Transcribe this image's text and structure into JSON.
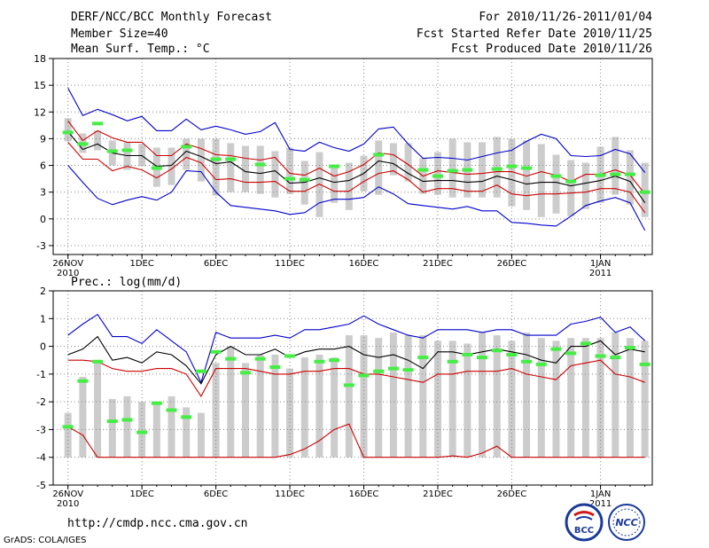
{
  "header": {
    "title": "DERF/NCC/BCC Monthly Forecast",
    "member_size": "Member Size=40",
    "variable": "Mean Surf. Temp.: °C",
    "period": "For 2010/11/26-2011/01/04",
    "started": "Fcst Started Refer Date 2010/11/25",
    "produced": "Fcst Produced Date 2010/11/26"
  },
  "precip_label": "Prec.: log(mm/d)",
  "footer": {
    "url": "http://cmdp.ncc.cma.gov.cn",
    "credit": "GrADS: COLA/IGES",
    "logo1": "BCC",
    "logo2": "NCC"
  },
  "colors": {
    "max": "#0000cc",
    "spread": "#cc0000",
    "mean": "#000000",
    "member": "#cccccc",
    "obs": "#44ee44",
    "grid": "#888888"
  },
  "chart_data": [
    {
      "type": "line",
      "title": "Mean Surf. Temp.: °C",
      "x_ticks": [
        {
          "day": 0,
          "label": "26NOV",
          "label2": "2010"
        },
        {
          "day": 5,
          "label": "1DEC"
        },
        {
          "day": 10,
          "label": "6DEC"
        },
        {
          "day": 15,
          "label": "11DEC"
        },
        {
          "day": 20,
          "label": "16DEC"
        },
        {
          "day": 25,
          "label": "21DEC"
        },
        {
          "day": 30,
          "label": "26DEC"
        },
        {
          "day": 36,
          "label": "1JAN",
          "label2": "2011"
        }
      ],
      "xlim": [
        -1,
        39.5
      ],
      "ylim": [
        -4,
        18
      ],
      "yticks": [
        -3,
        0,
        3,
        6,
        9,
        12,
        15,
        18
      ],
      "series": [
        {
          "name": "max",
          "values": [
            14.7,
            11.6,
            12.3,
            11.7,
            11.0,
            11.5,
            9.9,
            9.9,
            11.2,
            10.0,
            10.4,
            10.0,
            9.5,
            9.8,
            10.8,
            7.8,
            7.6,
            8.6,
            8.0,
            7.6,
            8.4,
            10.1,
            10.3,
            8.4,
            6.8,
            6.9,
            6.8,
            6.6,
            7.0,
            7.4,
            7.7,
            8.7,
            9.5,
            9.0,
            7.1,
            7.0,
            7.1,
            7.8,
            7.3,
            5.2
          ]
        },
        {
          "name": "spread_upper",
          "values": [
            11.0,
            8.8,
            9.9,
            9.1,
            8.6,
            8.6,
            7.1,
            7.1,
            8.4,
            7.9,
            7.2,
            7.1,
            6.8,
            6.6,
            6.9,
            5.1,
            4.9,
            5.7,
            4.8,
            5.3,
            6.1,
            7.4,
            7.2,
            6.1,
            4.8,
            5.4,
            5.2,
            5.0,
            5.1,
            5.3,
            5.3,
            4.8,
            5.3,
            4.9,
            4.2,
            5.0,
            5.0,
            5.5,
            4.9,
            2.8
          ]
        },
        {
          "name": "mean",
          "values": [
            9.8,
            7.8,
            8.4,
            7.4,
            7.1,
            7.1,
            5.9,
            6.0,
            7.6,
            7.0,
            6.2,
            6.4,
            5.3,
            5.1,
            5.4,
            4.0,
            4.1,
            4.6,
            4.1,
            4.3,
            5.1,
            6.5,
            6.2,
            5.1,
            4.2,
            4.3,
            4.3,
            4.1,
            4.2,
            4.8,
            4.4,
            3.9,
            4.1,
            4.1,
            3.7,
            4.0,
            4.3,
            4.8,
            4.2,
            1.8
          ]
        },
        {
          "name": "spread_lower",
          "values": [
            8.6,
            6.7,
            6.7,
            5.4,
            5.9,
            5.5,
            4.6,
            5.6,
            6.9,
            6.3,
            4.4,
            4.5,
            4.1,
            4.1,
            4.2,
            3.1,
            3.1,
            3.9,
            3.1,
            3.1,
            4.2,
            5.1,
            5.4,
            4.4,
            3.0,
            3.4,
            3.4,
            3.1,
            3.1,
            3.8,
            2.8,
            2.6,
            2.8,
            2.8,
            2.9,
            3.0,
            3.4,
            3.4,
            3.0,
            0.7
          ]
        },
        {
          "name": "min",
          "values": [
            6.0,
            4.1,
            2.3,
            1.6,
            2.1,
            2.5,
            2.1,
            3.0,
            5.4,
            5.3,
            3.0,
            1.5,
            1.3,
            1.1,
            0.9,
            0.5,
            0.7,
            1.8,
            2.2,
            2.2,
            2.4,
            3.6,
            2.8,
            1.7,
            1.5,
            1.3,
            1.1,
            1.4,
            0.9,
            0.9,
            -0.4,
            -0.5,
            -0.7,
            -0.8,
            0.3,
            1.5,
            2.0,
            2.4,
            1.8,
            -1.3
          ]
        }
      ],
      "members": [
        [
          8.7,
          11.3
        ],
        [
          7.4,
          9.6
        ],
        [
          7.7,
          9.9
        ],
        [
          6.0,
          8.8
        ],
        [
          5.5,
          8.6
        ],
        [
          5.9,
          8.4
        ],
        [
          3.6,
          8.0
        ],
        [
          3.8,
          8.0
        ],
        [
          5.5,
          9.0
        ],
        [
          4.2,
          9.0
        ],
        [
          2.6,
          9.0
        ],
        [
          3.0,
          8.5
        ],
        [
          3.0,
          8.2
        ],
        [
          2.8,
          8.2
        ],
        [
          2.4,
          7.6
        ],
        [
          2.8,
          8.0
        ],
        [
          1.6,
          6.5
        ],
        [
          0.2,
          7.5
        ],
        [
          1.8,
          6.1
        ],
        [
          1.0,
          6.3
        ],
        [
          3.1,
          7.1
        ],
        [
          2.7,
          8.8
        ],
        [
          4.9,
          8.5
        ],
        [
          4.2,
          8.5
        ],
        [
          2.8,
          6.8
        ],
        [
          2.7,
          7.5
        ],
        [
          2.4,
          9.0
        ],
        [
          2.4,
          8.6
        ],
        [
          2.4,
          8.6
        ],
        [
          2.4,
          9.2
        ],
        [
          1.4,
          9.0
        ],
        [
          1.0,
          8.8
        ],
        [
          0.2,
          8.4
        ],
        [
          0.6,
          7.2
        ],
        [
          0.3,
          6.6
        ],
        [
          1.1,
          6.3
        ],
        [
          1.8,
          8.1
        ],
        [
          2.7,
          9.2
        ],
        [
          1.6,
          7.7
        ],
        [
          0.2,
          6.3
        ]
      ],
      "obs": [
        {
          "day": 0,
          "v": 9.7
        },
        {
          "day": 1,
          "v": 8.4
        },
        {
          "day": 2,
          "v": 10.7
        },
        {
          "day": 3,
          "v": 7.6
        },
        {
          "day": 4,
          "v": 7.7
        },
        {
          "day": 6,
          "v": 5.7
        },
        {
          "day": 8,
          "v": 8.1
        },
        {
          "day": 10,
          "v": 6.7
        },
        {
          "day": 11,
          "v": 6.7
        },
        {
          "day": 13,
          "v": 6.1
        },
        {
          "day": 15,
          "v": 4.5
        },
        {
          "day": 16,
          "v": 4.4
        },
        {
          "day": 18,
          "v": 5.9
        },
        {
          "day": 21,
          "v": 7.2
        },
        {
          "day": 24,
          "v": 5.5
        },
        {
          "day": 25,
          "v": 4.8
        },
        {
          "day": 26,
          "v": 5.4
        },
        {
          "day": 27,
          "v": 5.5
        },
        {
          "day": 29,
          "v": 5.6
        },
        {
          "day": 30,
          "v": 5.9
        },
        {
          "day": 31,
          "v": 5.7
        },
        {
          "day": 33,
          "v": 4.8
        },
        {
          "day": 34,
          "v": 4.2
        },
        {
          "day": 36,
          "v": 4.9
        },
        {
          "day": 37,
          "v": 5.0
        },
        {
          "day": 38,
          "v": 5.0
        },
        {
          "day": 39,
          "v": 3.0
        }
      ]
    },
    {
      "type": "line",
      "title": "Prec.: log(mm/d)",
      "x_ticks": [
        {
          "day": 0,
          "label": "26NOV",
          "label2": "2010"
        },
        {
          "day": 5,
          "label": "1DEC"
        },
        {
          "day": 10,
          "label": "6DEC"
        },
        {
          "day": 15,
          "label": "11DEC"
        },
        {
          "day": 20,
          "label": "16DEC"
        },
        {
          "day": 25,
          "label": "21DEC"
        },
        {
          "day": 30,
          "label": "26DEC"
        },
        {
          "day": 36,
          "label": "1JAN",
          "label2": "2011"
        }
      ],
      "xlim": [
        -1,
        39.5
      ],
      "ylim": [
        -5,
        2
      ],
      "yticks": [
        -5,
        -4,
        -3,
        -2,
        -1,
        0,
        1,
        2
      ],
      "series": [
        {
          "name": "max",
          "values": [
            0.4,
            0.8,
            1.15,
            0.35,
            0.35,
            0.1,
            0.6,
            0.2,
            -0.2,
            -1.3,
            0.5,
            0.3,
            0.3,
            0.3,
            0.4,
            0.3,
            0.6,
            0.6,
            0.7,
            0.8,
            1.1,
            0.8,
            0.6,
            0.4,
            0.3,
            0.6,
            0.6,
            0.6,
            0.5,
            0.6,
            0.6,
            0.4,
            0.4,
            0.4,
            0.8,
            0.9,
            1.05,
            0.5,
            0.7,
            0.2
          ]
        },
        {
          "name": "mean",
          "values": [
            -0.3,
            -0.1,
            0.35,
            -0.5,
            -0.4,
            -0.6,
            -0.2,
            -0.3,
            -0.7,
            -1.35,
            -0.3,
            0.0,
            -0.3,
            -0.3,
            -0.1,
            -0.4,
            -0.2,
            -0.1,
            -0.1,
            0.0,
            -0.3,
            -0.4,
            -0.3,
            -0.5,
            -0.8,
            -0.2,
            -0.2,
            -0.3,
            -0.2,
            -0.1,
            -0.2,
            -0.3,
            -0.5,
            -0.6,
            0.0,
            0.0,
            0.2,
            -0.3,
            -0.1,
            -0.2
          ]
        },
        {
          "name": "spread_upper",
          "values": [
            -0.5,
            -0.5,
            -0.55,
            -0.8,
            -0.9,
            -0.9,
            -0.8,
            -0.8,
            -1.0,
            -1.8,
            -0.8,
            -0.8,
            -0.8,
            -0.9,
            -1.0,
            -1.0,
            -0.9,
            -0.9,
            -0.8,
            -0.8,
            -1.0,
            -1.0,
            -1.1,
            -1.2,
            -1.3,
            -1.0,
            -1.0,
            -0.9,
            -0.9,
            -0.9,
            -0.8,
            -1.0,
            -1.1,
            -1.2,
            -0.7,
            -0.6,
            -0.5,
            -1.0,
            -1.1,
            -1.3
          ]
        },
        {
          "name": "spread_lower",
          "values": [
            -2.9,
            -3.2,
            -4.0,
            -4.0,
            -4.0,
            -4.0,
            -4.0,
            -4.0,
            -4.0,
            -4.0,
            -4.0,
            -4.0,
            -4.0,
            -4.0,
            -4.0,
            -3.9,
            -3.7,
            -3.4,
            -3.0,
            -2.8,
            -4.0,
            -4.0,
            -4.0,
            -4.0,
            -4.0,
            -4.0,
            -3.95,
            -4.0,
            -3.85,
            -3.6,
            -4.0,
            -4.0,
            -4.0,
            -4.0,
            -4.0,
            -4.0,
            -4.0,
            -4.0,
            -4.0,
            -4.0
          ]
        }
      ],
      "members": [
        [
          -4.0,
          -2.4
        ],
        [
          -4.0,
          -1.1
        ],
        [
          -4.0,
          -0.6
        ],
        [
          -4.0,
          -1.9
        ],
        [
          -4.0,
          -1.8
        ],
        [
          -4.0,
          -2.0
        ],
        [
          -4.0,
          -2.0
        ],
        [
          -4.0,
          -1.8
        ],
        [
          -4.0,
          -2.2
        ],
        [
          -4.0,
          -2.4
        ],
        [
          -4.0,
          -0.6
        ],
        [
          -4.0,
          0.0
        ],
        [
          -4.0,
          -0.6
        ],
        [
          -4.0,
          -0.3
        ],
        [
          -4.0,
          -0.3
        ],
        [
          -4.0,
          -0.8
        ],
        [
          -4.0,
          -0.4
        ],
        [
          -4.0,
          -0.3
        ],
        [
          -4.0,
          -0.4
        ],
        [
          -4.0,
          0.4
        ],
        [
          -4.0,
          0.4
        ],
        [
          -4.0,
          0.3
        ],
        [
          -4.0,
          0.5
        ],
        [
          -4.0,
          0.4
        ],
        [
          -4.0,
          0.4
        ],
        [
          -4.0,
          0.2
        ],
        [
          -4.0,
          0.2
        ],
        [
          -4.0,
          0.1
        ],
        [
          -4.0,
          0.5
        ],
        [
          -4.0,
          0.4
        ],
        [
          -4.0,
          0.2
        ],
        [
          -4.0,
          0.5
        ],
        [
          -4.0,
          0.3
        ],
        [
          -4.0,
          0.2
        ],
        [
          -4.0,
          0.3
        ],
        [
          -4.0,
          0.3
        ],
        [
          -4.0,
          0.3
        ],
        [
          -4.0,
          0.5
        ],
        [
          -4.0,
          0.3
        ],
        [
          -4.0,
          0.2
        ]
      ],
      "obs": [
        {
          "day": 0,
          "v": -2.9
        },
        {
          "day": 1,
          "v": -1.25
        },
        {
          "day": 2,
          "v": -0.55
        },
        {
          "day": 3,
          "v": -2.7
        },
        {
          "day": 4,
          "v": -2.65
        },
        {
          "day": 5,
          "v": -3.1
        },
        {
          "day": 6,
          "v": -2.05
        },
        {
          "day": 7,
          "v": -2.3
        },
        {
          "day": 8,
          "v": -2.55
        },
        {
          "day": 9,
          "v": -0.9
        },
        {
          "day": 10,
          "v": -0.2
        },
        {
          "day": 11,
          "v": -0.45
        },
        {
          "day": 12,
          "v": -0.95
        },
        {
          "day": 13,
          "v": -0.45
        },
        {
          "day": 14,
          "v": -0.75
        },
        {
          "day": 15,
          "v": -0.35
        },
        {
          "day": 17,
          "v": -0.55
        },
        {
          "day": 18,
          "v": -0.5
        },
        {
          "day": 19,
          "v": -1.4
        },
        {
          "day": 20,
          "v": -1.05
        },
        {
          "day": 21,
          "v": -0.9
        },
        {
          "day": 22,
          "v": -0.8
        },
        {
          "day": 23,
          "v": -0.85
        },
        {
          "day": 24,
          "v": -0.4
        },
        {
          "day": 26,
          "v": -0.55
        },
        {
          "day": 27,
          "v": -0.3
        },
        {
          "day": 28,
          "v": -0.4
        },
        {
          "day": 29,
          "v": -0.15
        },
        {
          "day": 30,
          "v": -0.3
        },
        {
          "day": 31,
          "v": -0.55
        },
        {
          "day": 32,
          "v": -0.65
        },
        {
          "day": 33,
          "v": -0.1
        },
        {
          "day": 34,
          "v": -0.25
        },
        {
          "day": 35,
          "v": 0.1
        },
        {
          "day": 36,
          "v": -0.35
        },
        {
          "day": 37,
          "v": -0.4
        },
        {
          "day": 38,
          "v": -0.05
        },
        {
          "day": 39,
          "v": -0.65
        }
      ]
    }
  ]
}
